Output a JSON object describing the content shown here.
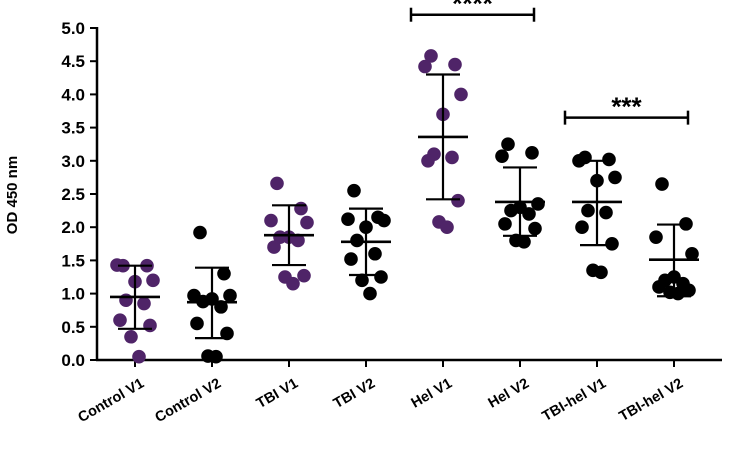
{
  "chart_data": {
    "type": "scatter",
    "title": "",
    "xlabel": "",
    "ylabel": "OD 450 nm",
    "ylim": [
      0,
      5
    ],
    "yticks": [
      "0.0",
      "0.5",
      "1.0",
      "1.5",
      "2.0",
      "2.5",
      "3.0",
      "3.5",
      "4.0",
      "4.5",
      "5.0"
    ],
    "colors": {
      "purple": "#4f2468",
      "black": "#000000"
    },
    "groups": [
      {
        "name": "Control V1",
        "color": "purple",
        "mean": 0.95,
        "sd_low": 0.47,
        "sd_high": 1.42,
        "points": [
          1.42,
          1.42,
          1.43,
          1.2,
          1.18,
          0.9,
          0.85,
          0.6,
          0.52,
          0.35,
          0.05
        ]
      },
      {
        "name": "Control V2",
        "color": "black",
        "mean": 0.87,
        "sd_low": 0.33,
        "sd_high": 1.39,
        "points": [
          1.92,
          1.3,
          0.97,
          0.97,
          0.92,
          0.88,
          0.8,
          0.55,
          0.4,
          0.06,
          0.05
        ]
      },
      {
        "name": "TBI V1",
        "color": "purple",
        "mean": 1.88,
        "sd_low": 1.43,
        "sd_high": 2.33,
        "points": [
          2.66,
          2.28,
          2.1,
          2.07,
          1.85,
          1.85,
          1.8,
          1.7,
          1.27,
          1.25,
          1.15
        ]
      },
      {
        "name": "TBI V2",
        "color": "black",
        "mean": 1.78,
        "sd_low": 1.28,
        "sd_high": 2.28,
        "points": [
          2.55,
          2.15,
          2.12,
          2.1,
          2.0,
          1.8,
          1.6,
          1.52,
          1.25,
          1.2,
          1.0
        ]
      },
      {
        "name": "Hel V1",
        "color": "purple",
        "mean": 3.36,
        "sd_low": 2.42,
        "sd_high": 4.3,
        "points": [
          4.58,
          4.45,
          4.42,
          4.0,
          3.7,
          3.1,
          3.05,
          3.0,
          2.4,
          2.08,
          2.0
        ]
      },
      {
        "name": "Hel V2",
        "color": "black",
        "mean": 2.38,
        "sd_low": 1.87,
        "sd_high": 2.9,
        "points": [
          3.25,
          3.12,
          3.07,
          2.35,
          2.3,
          2.25,
          2.2,
          2.05,
          1.98,
          1.8,
          1.78
        ]
      },
      {
        "name": "TBI-hel V1",
        "color": "black",
        "mean": 2.38,
        "sd_low": 1.73,
        "sd_high": 3.0,
        "points": [
          3.05,
          3.02,
          3.0,
          2.75,
          2.7,
          2.25,
          2.22,
          2.0,
          1.75,
          1.35,
          1.32
        ]
      },
      {
        "name": "TBI-hel V2",
        "color": "black",
        "mean": 1.51,
        "sd_low": 0.96,
        "sd_high": 2.04,
        "points": [
          2.65,
          2.05,
          1.85,
          1.6,
          1.25,
          1.2,
          1.15,
          1.1,
          1.05,
          1.02,
          1.0
        ]
      }
    ],
    "significance": [
      {
        "from": "Hel V1",
        "to": "Hel V2",
        "label": "****",
        "y": 5.2
      },
      {
        "from": "TBI-hel V1",
        "to": "TBI-hel V2",
        "label": "***",
        "y": 3.65
      }
    ]
  }
}
